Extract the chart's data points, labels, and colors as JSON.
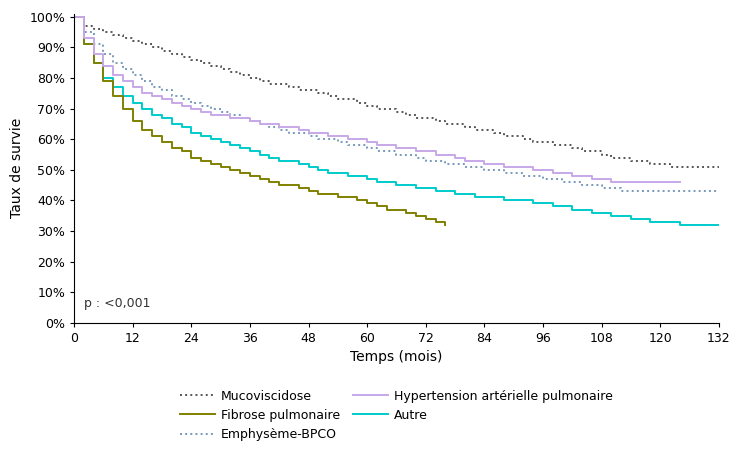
{
  "xlabel": "Temps (mois)",
  "ylabel": "Taux de survie",
  "pvalue_text": "p : <0,001",
  "xlim": [
    0,
    132
  ],
  "ylim": [
    0,
    1.01
  ],
  "xticks": [
    0,
    12,
    24,
    36,
    48,
    60,
    72,
    84,
    96,
    108,
    120,
    132
  ],
  "yticks": [
    0.0,
    0.1,
    0.2,
    0.3,
    0.4,
    0.5,
    0.6,
    0.7,
    0.8,
    0.9,
    1.0
  ],
  "ytick_labels": [
    "0%",
    "10%",
    "20%",
    "30%",
    "40%",
    "50%",
    "60%",
    "70%",
    "80%",
    "90%",
    "100%"
  ],
  "curves": {
    "Mucoviscidose": {
      "color": "#555555",
      "linestyle": "dotted",
      "linewidth": 1.4,
      "x": [
        0,
        2,
        4,
        6,
        8,
        10,
        12,
        14,
        16,
        18,
        20,
        22,
        24,
        26,
        28,
        30,
        32,
        34,
        36,
        38,
        40,
        42,
        44,
        46,
        48,
        50,
        52,
        54,
        56,
        58,
        60,
        62,
        64,
        66,
        68,
        70,
        72,
        74,
        76,
        78,
        80,
        82,
        84,
        86,
        88,
        90,
        92,
        94,
        96,
        98,
        100,
        102,
        104,
        106,
        108,
        110,
        112,
        114,
        116,
        118,
        120,
        122,
        124,
        126,
        128,
        130,
        132
      ],
      "y": [
        1.0,
        0.97,
        0.96,
        0.95,
        0.94,
        0.93,
        0.92,
        0.91,
        0.9,
        0.89,
        0.88,
        0.87,
        0.86,
        0.85,
        0.84,
        0.83,
        0.82,
        0.81,
        0.8,
        0.79,
        0.78,
        0.78,
        0.77,
        0.76,
        0.76,
        0.75,
        0.74,
        0.73,
        0.73,
        0.72,
        0.71,
        0.7,
        0.7,
        0.69,
        0.68,
        0.67,
        0.67,
        0.66,
        0.65,
        0.65,
        0.64,
        0.63,
        0.63,
        0.62,
        0.61,
        0.61,
        0.6,
        0.59,
        0.59,
        0.58,
        0.58,
        0.57,
        0.56,
        0.56,
        0.55,
        0.54,
        0.54,
        0.53,
        0.53,
        0.52,
        0.52,
        0.51,
        0.51,
        0.51,
        0.51,
        0.51,
        0.51
      ]
    },
    "Emphysème-BPCO": {
      "color": "#7799bb",
      "linestyle": "dotted",
      "linewidth": 1.4,
      "x": [
        0,
        2,
        4,
        6,
        8,
        10,
        12,
        14,
        16,
        18,
        20,
        22,
        24,
        26,
        28,
        30,
        32,
        34,
        36,
        38,
        40,
        42,
        44,
        46,
        48,
        50,
        52,
        54,
        56,
        58,
        60,
        62,
        64,
        66,
        68,
        70,
        72,
        74,
        76,
        78,
        80,
        82,
        84,
        86,
        88,
        90,
        92,
        94,
        96,
        98,
        100,
        102,
        104,
        106,
        108,
        110,
        112,
        114,
        116,
        118,
        120,
        122,
        124,
        126,
        128,
        130,
        132
      ],
      "y": [
        1.0,
        0.95,
        0.91,
        0.88,
        0.85,
        0.83,
        0.81,
        0.79,
        0.77,
        0.76,
        0.74,
        0.73,
        0.72,
        0.71,
        0.7,
        0.69,
        0.68,
        0.67,
        0.66,
        0.65,
        0.64,
        0.63,
        0.62,
        0.62,
        0.61,
        0.6,
        0.6,
        0.59,
        0.58,
        0.58,
        0.57,
        0.56,
        0.56,
        0.55,
        0.55,
        0.54,
        0.53,
        0.53,
        0.52,
        0.52,
        0.51,
        0.51,
        0.5,
        0.5,
        0.49,
        0.49,
        0.48,
        0.48,
        0.47,
        0.47,
        0.46,
        0.46,
        0.45,
        0.45,
        0.44,
        0.44,
        0.43,
        0.43,
        0.43,
        0.43,
        0.43,
        0.43,
        0.43,
        0.43,
        0.43,
        0.43,
        0.43
      ]
    },
    "Autre": {
      "color": "#00cccc",
      "linestyle": "solid",
      "linewidth": 1.4,
      "x": [
        0,
        2,
        4,
        6,
        8,
        10,
        12,
        14,
        16,
        18,
        20,
        22,
        24,
        26,
        28,
        30,
        32,
        34,
        36,
        38,
        40,
        42,
        44,
        46,
        48,
        50,
        52,
        54,
        56,
        58,
        60,
        62,
        64,
        66,
        68,
        70,
        72,
        74,
        76,
        78,
        80,
        82,
        84,
        86,
        88,
        90,
        92,
        94,
        96,
        98,
        100,
        102,
        104,
        106,
        108,
        110,
        112,
        114,
        116,
        118,
        120,
        122,
        124,
        126,
        128,
        130,
        132
      ],
      "y": [
        1.0,
        0.91,
        0.85,
        0.8,
        0.77,
        0.74,
        0.72,
        0.7,
        0.68,
        0.67,
        0.65,
        0.64,
        0.62,
        0.61,
        0.6,
        0.59,
        0.58,
        0.57,
        0.56,
        0.55,
        0.54,
        0.53,
        0.53,
        0.52,
        0.51,
        0.5,
        0.49,
        0.49,
        0.48,
        0.48,
        0.47,
        0.46,
        0.46,
        0.45,
        0.45,
        0.44,
        0.44,
        0.43,
        0.43,
        0.42,
        0.42,
        0.41,
        0.41,
        0.41,
        0.4,
        0.4,
        0.4,
        0.39,
        0.39,
        0.38,
        0.38,
        0.37,
        0.37,
        0.36,
        0.36,
        0.35,
        0.35,
        0.34,
        0.34,
        0.33,
        0.33,
        0.33,
        0.32,
        0.32,
        0.32,
        0.32,
        0.32
      ]
    },
    "Fibrose pulmonaire": {
      "color": "#808000",
      "linestyle": "solid",
      "linewidth": 1.4,
      "x": [
        0,
        2,
        4,
        6,
        8,
        10,
        12,
        14,
        16,
        18,
        20,
        22,
        24,
        26,
        28,
        30,
        32,
        34,
        36,
        38,
        40,
        42,
        44,
        46,
        48,
        50,
        52,
        54,
        56,
        58,
        60,
        62,
        64,
        66,
        68,
        70,
        72,
        74,
        76
      ],
      "y": [
        1.0,
        0.91,
        0.85,
        0.79,
        0.74,
        0.7,
        0.66,
        0.63,
        0.61,
        0.59,
        0.57,
        0.56,
        0.54,
        0.53,
        0.52,
        0.51,
        0.5,
        0.49,
        0.48,
        0.47,
        0.46,
        0.45,
        0.45,
        0.44,
        0.43,
        0.42,
        0.42,
        0.41,
        0.41,
        0.4,
        0.39,
        0.38,
        0.37,
        0.37,
        0.36,
        0.35,
        0.34,
        0.33,
        0.32
      ]
    },
    "Hypertension artérielle pulmonaire": {
      "color": "#c8a8e8",
      "linestyle": "solid",
      "linewidth": 1.4,
      "x": [
        0,
        2,
        4,
        6,
        8,
        10,
        12,
        14,
        16,
        18,
        20,
        22,
        24,
        26,
        28,
        30,
        32,
        34,
        36,
        38,
        40,
        42,
        44,
        46,
        48,
        50,
        52,
        54,
        56,
        58,
        60,
        62,
        64,
        66,
        68,
        70,
        72,
        74,
        76,
        78,
        80,
        82,
        84,
        86,
        88,
        90,
        92,
        94,
        96,
        98,
        100,
        102,
        104,
        106,
        108,
        110,
        112,
        114,
        116,
        118,
        120,
        122,
        124
      ],
      "y": [
        1.0,
        0.93,
        0.88,
        0.84,
        0.81,
        0.79,
        0.77,
        0.75,
        0.74,
        0.73,
        0.72,
        0.71,
        0.7,
        0.69,
        0.68,
        0.68,
        0.67,
        0.67,
        0.66,
        0.65,
        0.65,
        0.64,
        0.64,
        0.63,
        0.62,
        0.62,
        0.61,
        0.61,
        0.6,
        0.6,
        0.59,
        0.58,
        0.58,
        0.57,
        0.57,
        0.56,
        0.56,
        0.55,
        0.55,
        0.54,
        0.53,
        0.53,
        0.52,
        0.52,
        0.51,
        0.51,
        0.51,
        0.5,
        0.5,
        0.49,
        0.49,
        0.48,
        0.48,
        0.47,
        0.47,
        0.46,
        0.46,
        0.46,
        0.46,
        0.46,
        0.46,
        0.46,
        0.46
      ]
    }
  },
  "legend_order": [
    "Mucoviscidose",
    "Fibrose pulmonaire",
    "Emphysème-BPCO",
    "Hypertension artérielle pulmonaire",
    "Autre"
  ],
  "background_color": "#ffffff",
  "fontsize_labels": 10,
  "fontsize_ticks": 9,
  "fontsize_legend": 9,
  "fontsize_pvalue": 9
}
